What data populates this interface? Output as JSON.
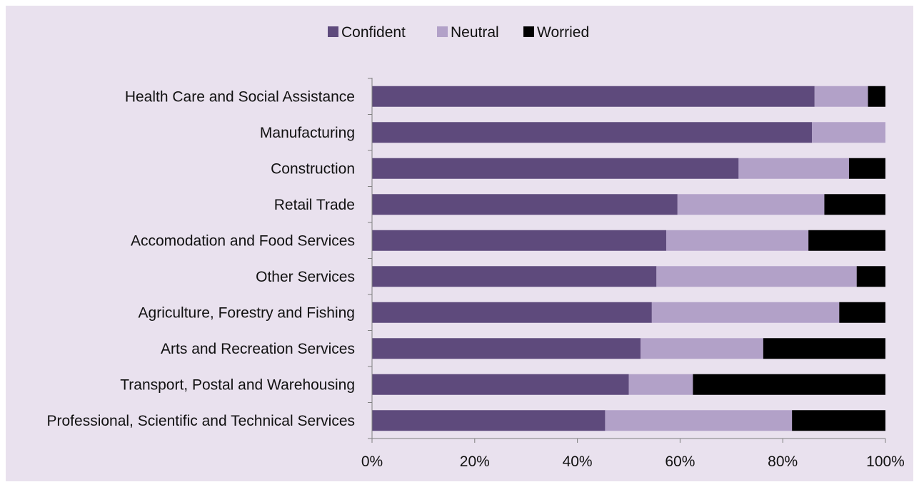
{
  "chart_data": {
    "type": "bar",
    "orientation": "horizontal",
    "stacked": true,
    "normalized": true,
    "title": "",
    "xlabel": "",
    "ylabel": "",
    "xlim": [
      0,
      100
    ],
    "x_ticks": [
      "0%",
      "20%",
      "40%",
      "60%",
      "80%",
      "100%"
    ],
    "legend_position": "top-center",
    "grid": false,
    "categories": [
      "Health Care and Social Assistance",
      "Manufacturing",
      "Construction",
      "Retail Trade",
      "Accomodation and Food Services",
      "Other Services",
      "Agriculture, Forestry and Fishing",
      "Arts and Recreation Services",
      "Transport, Postal and Warehousing",
      "Professional, Scientific and Technical Services"
    ],
    "series": [
      {
        "name": "Confident",
        "color": "#5e4a7c",
        "values": [
          86.2,
          85.7,
          71.4,
          59.5,
          57.3,
          55.4,
          54.5,
          52.3,
          50.0,
          45.4
        ]
      },
      {
        "name": "Neutral",
        "color": "#b2a1c8",
        "values": [
          10.4,
          14.3,
          21.5,
          28.6,
          27.7,
          39.0,
          36.5,
          23.9,
          12.5,
          36.4
        ]
      },
      {
        "name": "Worried",
        "color": "#000000",
        "values": [
          3.4,
          0.0,
          7.1,
          11.9,
          15.0,
          5.6,
          9.0,
          23.8,
          37.5,
          18.2
        ]
      }
    ]
  },
  "style": {
    "panel_background": "#e9e1ee",
    "axis_color": "#808080"
  }
}
